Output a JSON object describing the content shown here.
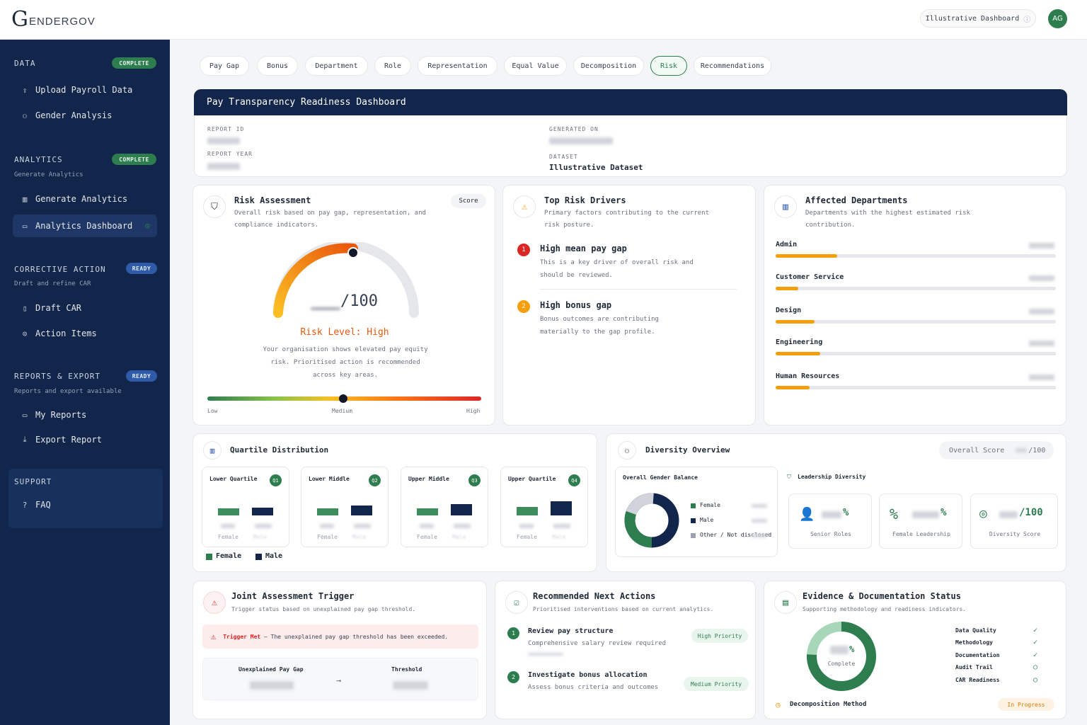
{
  "brand": {
    "logo_letter": "G",
    "logo_text": "ENDERGOV"
  },
  "top": {
    "dashboard_pill": "Illustrative Dashboard",
    "avatar": "AG"
  },
  "sidebar": {
    "data": {
      "title": "DATA",
      "badge": "COMPLETE",
      "items": [
        "Upload Payroll Data",
        "Gender Analysis"
      ]
    },
    "analytics": {
      "title": "ANALYTICS",
      "badge": "COMPLETE",
      "sub": "Generate Analytics",
      "items": [
        "Generate Analytics",
        "Analytics Dashboard"
      ]
    },
    "corrective": {
      "title": "CORRECTIVE ACTION",
      "badge": "READY",
      "sub": "Draft and refine CAR",
      "items": [
        "Draft CAR",
        "Action Items"
      ]
    },
    "reports": {
      "title": "REPORTS & EXPORT",
      "badge": "READY",
      "sub": "Reports and export available",
      "items": [
        "My Reports",
        "Export Report"
      ]
    },
    "support": {
      "title": "SUPPORT",
      "items": [
        "FAQ"
      ]
    }
  },
  "tabs": [
    "Pay Gap",
    "Bonus",
    "Department",
    "Role",
    "Representation",
    "Equal Value",
    "Decomposition",
    "Risk",
    "Recommendations"
  ],
  "active_tab": "Risk",
  "report": {
    "title": "Pay Transparency Readiness Dashboard",
    "report_id_label": "REPORT ID",
    "report_year_label": "REPORT YEAR",
    "generated_label": "GENERATED ON",
    "dataset_label": "DATASET",
    "dataset": "Illustrative Dataset"
  },
  "risk": {
    "title": "Risk Assessment",
    "subtitle": "Overall risk based on pay gap, representation, and compliance indicators.",
    "score_tag": "Score",
    "score_suffix": "/100",
    "level": "Risk Level: High",
    "desc": "Your organisation shows elevated pay equity risk. Prioritised action is recommended across key areas.",
    "scale": [
      "Low",
      "Medium",
      "High"
    ]
  },
  "drivers": {
    "title": "Top Risk Drivers",
    "subtitle": "Primary factors contributing to the current risk posture.",
    "items": [
      {
        "n": "1",
        "title": "High mean pay gap",
        "desc": "This is a key driver of overall risk and should be reviewed."
      },
      {
        "n": "2",
        "title": "High bonus gap",
        "desc": "Bonus outcomes are contributing materially to the gap profile."
      }
    ]
  },
  "departments": {
    "title": "Affected Departments",
    "subtitle": "Departments with the highest estimated risk contribution.",
    "items": [
      {
        "name": "Admin",
        "level": 0.22
      },
      {
        "name": "Customer Service",
        "level": 0.08
      },
      {
        "name": "Design",
        "level": 0.14
      },
      {
        "name": "Engineering",
        "level": 0.16
      },
      {
        "name": "Human Resources",
        "level": 0.12
      }
    ]
  },
  "quartiles": {
    "title": "Quartile Distribution",
    "items": [
      {
        "name": "Lower Quartile",
        "tag": "Q1"
      },
      {
        "name": "Lower Middle",
        "tag": "Q2"
      },
      {
        "name": "Upper Middle",
        "tag": "Q3"
      },
      {
        "name": "Upper Quartile",
        "tag": "Q4"
      }
    ],
    "female": "Female",
    "male": "Male",
    "legend": [
      "Female",
      "Male"
    ]
  },
  "diversity": {
    "title": "Diversity Overview",
    "overall_label": "Overall Score",
    "overall_suffix": "/100",
    "balance_title": "Overall Gender Balance",
    "legend": [
      "Female",
      "Male",
      "Other / Not disclosed"
    ],
    "leadership_title": "Leadership Diversity",
    "tiles": [
      {
        "value": "%",
        "label": "Senior Roles"
      },
      {
        "value": "%",
        "label": "Female Leadership"
      },
      {
        "value": "/100",
        "label": "Diversity Score"
      }
    ]
  },
  "joint": {
    "title": "Joint Assessment Trigger",
    "subtitle": "Trigger status based on unexplained pay gap threshold.",
    "alert_bold": "Trigger Met",
    "alert_text": " – The unexplained pay gap threshold has been exceeded.",
    "col1": "Unexplained Pay Gap",
    "col2": "Threshold"
  },
  "next": {
    "title": "Recommended Next Actions",
    "subtitle": "Prioritised interventions based on current analytics.",
    "items": [
      {
        "n": "1",
        "title": "Review pay structure",
        "desc": "Comprehensive salary review required",
        "priority": "High Priority"
      },
      {
        "n": "2",
        "title": "Investigate bonus allocation",
        "desc": "Assess bonus criteria and outcomes",
        "priority": "Medium Priority"
      }
    ]
  },
  "evidence": {
    "title": "Evidence & Documentation Status",
    "subtitle": "Supporting methodology and readiness indicators.",
    "complete": "Complete",
    "pct_suffix": "%",
    "checks": [
      "Data Quality",
      "Methodology",
      "Documentation",
      "Audit Trail",
      "CAR Readiness"
    ],
    "method": "Decomposition Method",
    "status": "In Progress"
  },
  "colors": {
    "navy": "#12254a",
    "green": "#2e7d4f",
    "orange": "#f59e0b",
    "red": "#dc2626"
  }
}
